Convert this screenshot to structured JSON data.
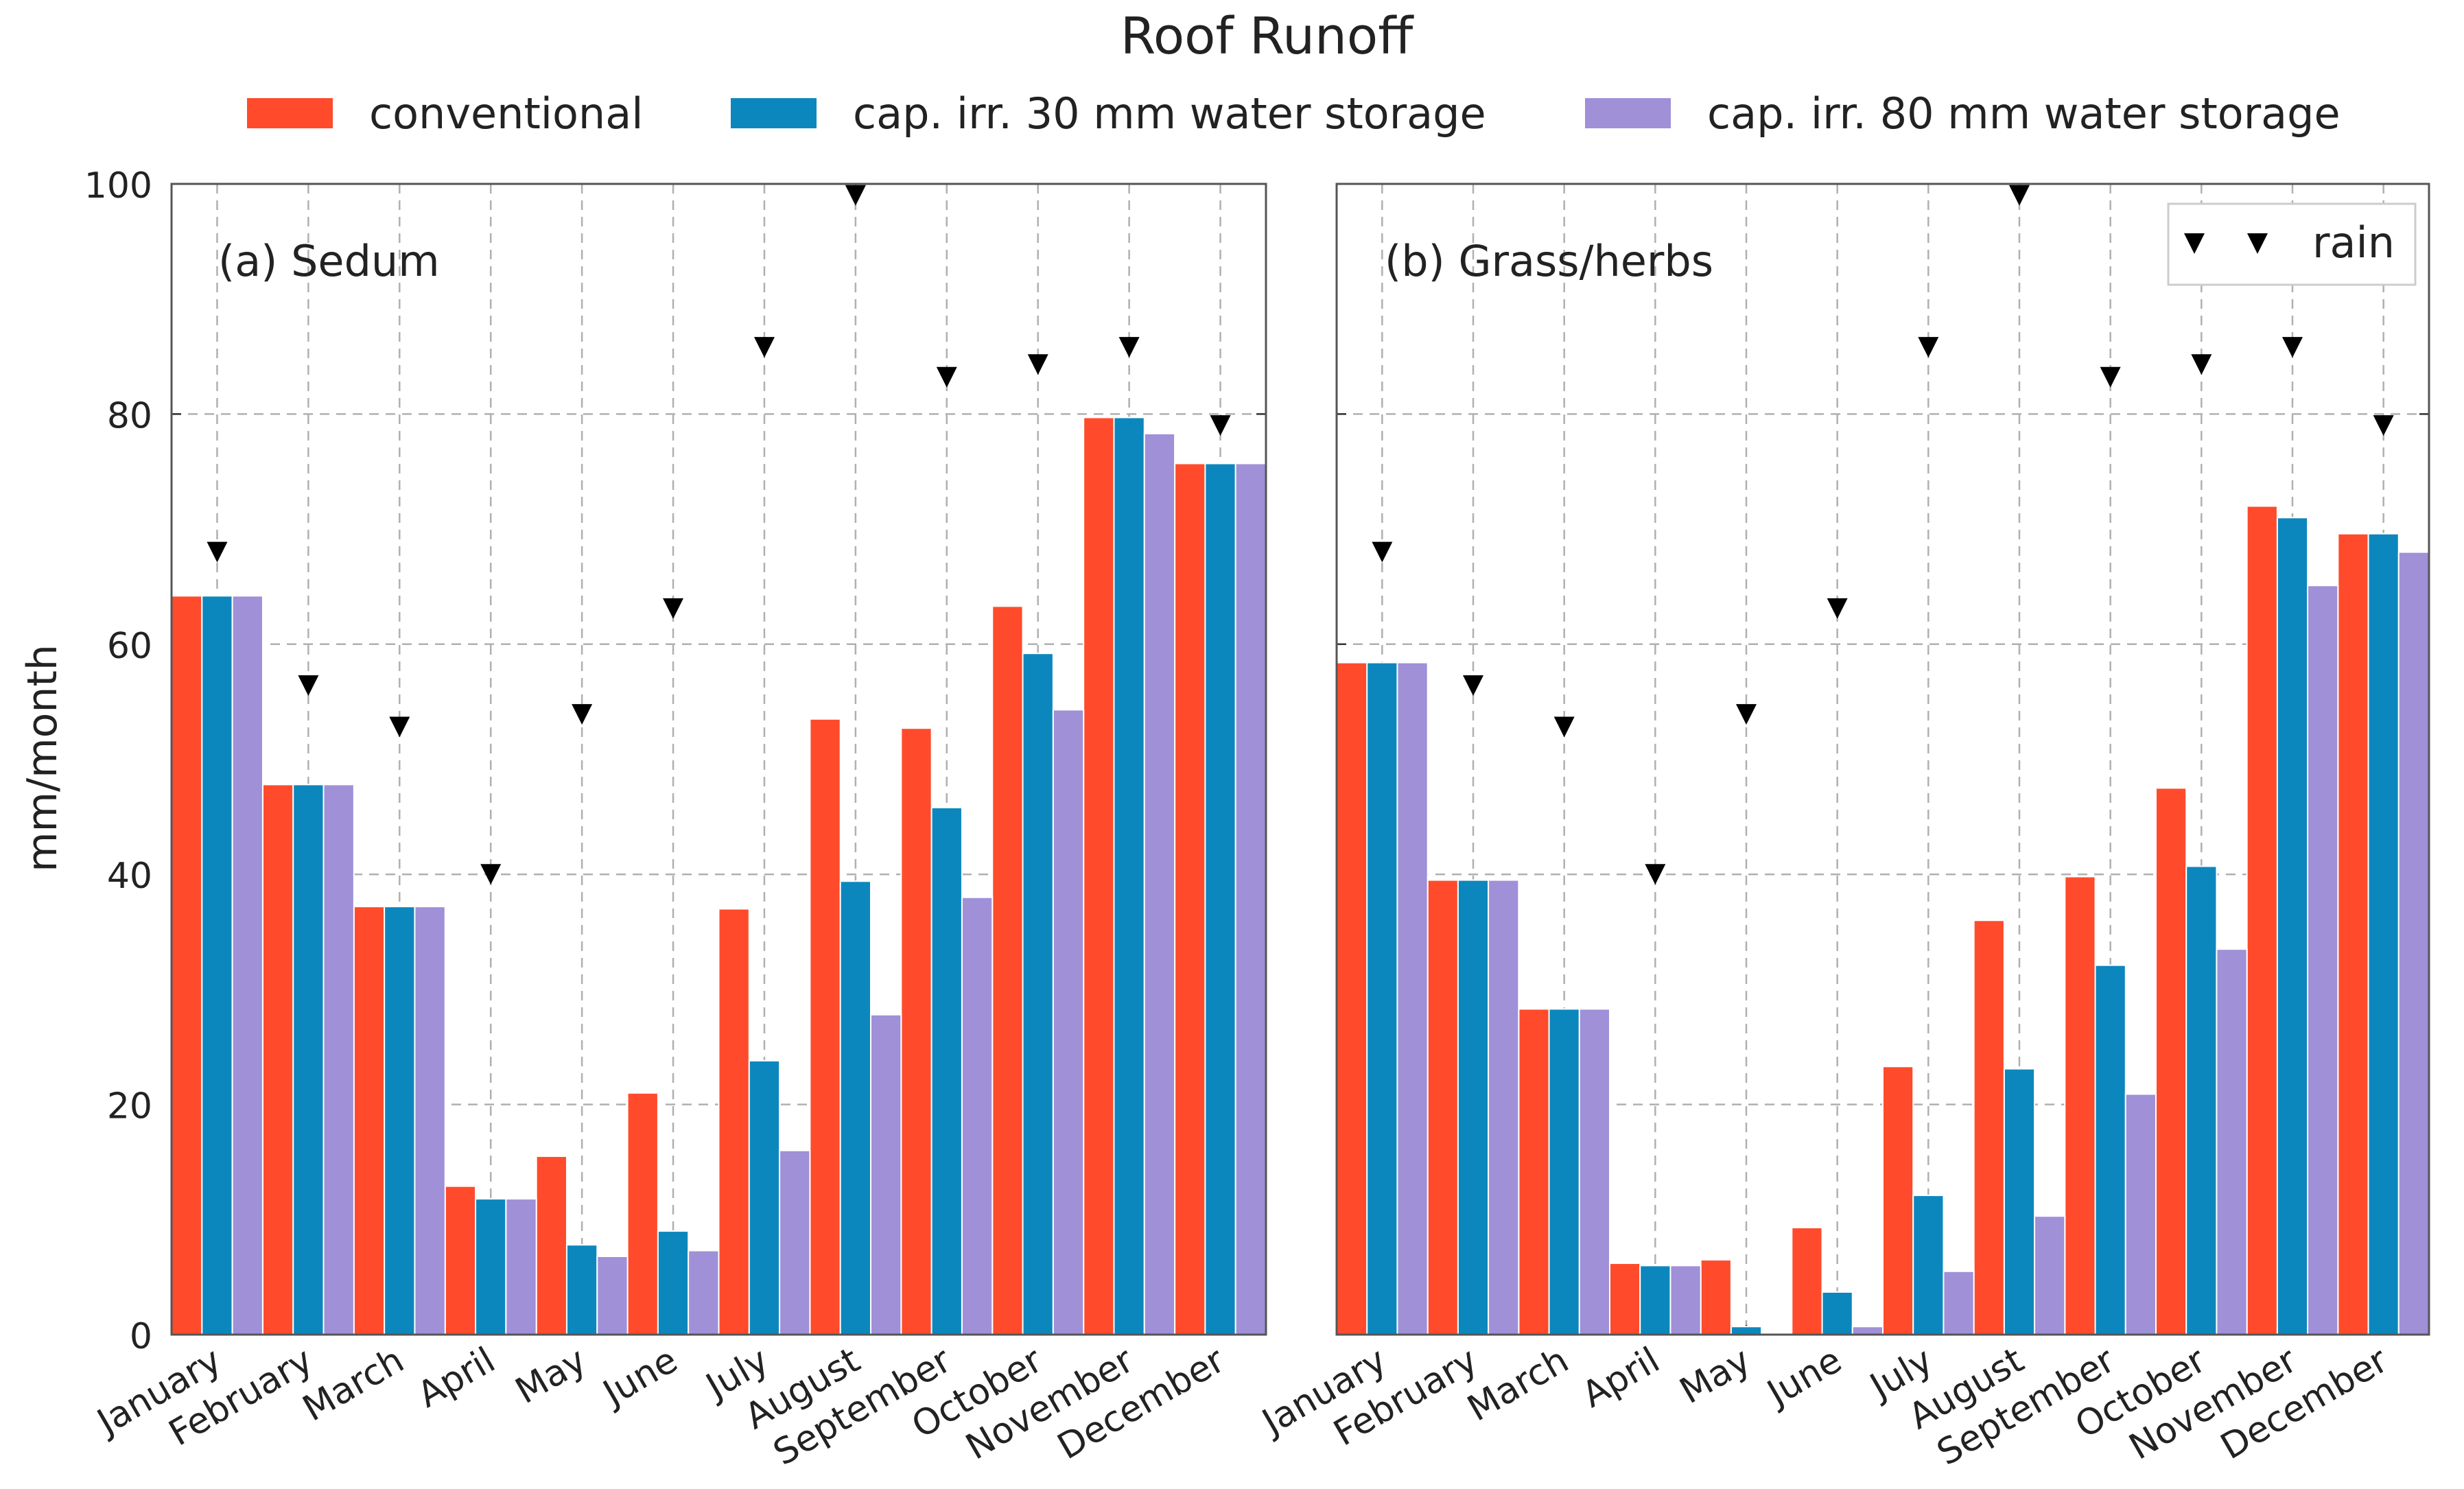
{
  "chart_data": {
    "type": "bar",
    "title": "Roof Runoff",
    "ylabel": "mm/month",
    "ylim": [
      0,
      100
    ],
    "yticks": [
      0,
      20,
      40,
      60,
      80,
      100
    ],
    "grid": true,
    "legend": {
      "placement": "top",
      "entries": [
        {
          "label": "conventional",
          "color": "#ff4b2b"
        },
        {
          "label": "cap. irr. 30 mm water storage",
          "color": "#0c87bd"
        },
        {
          "label": "cap. irr. 80 mm water storage",
          "color": "#9f90d8"
        }
      ]
    },
    "rain_legend": {
      "label": "rain",
      "marker": "downward-triangle",
      "placement": "top-right of panel (b)"
    },
    "categories": [
      "January",
      "February",
      "March",
      "April",
      "May",
      "June",
      "July",
      "August",
      "September",
      "October",
      "November",
      "December"
    ],
    "panels": [
      {
        "label": "(a) Sedum",
        "series": [
          {
            "name": "conventional",
            "values": [
              64.2,
              47.8,
              37.2,
              12.9,
              15.5,
              21.0,
              37.0,
              53.5,
              52.7,
              63.3,
              79.7,
              75.7
            ]
          },
          {
            "name": "cap. irr. 30 mm water storage",
            "values": [
              64.2,
              47.8,
              37.2,
              11.8,
              7.8,
              9.0,
              23.8,
              39.4,
              45.8,
              59.2,
              79.7,
              75.7
            ]
          },
          {
            "name": "cap. irr. 80 mm water storage",
            "values": [
              64.2,
              47.8,
              37.2,
              11.8,
              6.8,
              7.3,
              16.0,
              27.8,
              38.0,
              54.3,
              78.3,
              75.7
            ]
          }
        ],
        "rain": [
          68.0,
          56.4,
          52.8,
          40.0,
          53.9,
          63.1,
          85.8,
          99.0,
          83.2,
          84.3,
          85.8,
          79.0
        ]
      },
      {
        "label": "(b) Grass/herbs",
        "series": [
          {
            "name": "conventional",
            "values": [
              58.4,
              39.5,
              28.3,
              6.2,
              6.5,
              9.3,
              23.3,
              36.0,
              39.8,
              47.5,
              72.0,
              69.6
            ]
          },
          {
            "name": "cap. irr. 30 mm water storage",
            "values": [
              58.4,
              39.5,
              28.3,
              6.0,
              0.7,
              3.7,
              12.1,
              23.1,
              32.1,
              40.7,
              71.0,
              69.6
            ]
          },
          {
            "name": "cap. irr. 80 mm water storage",
            "values": [
              58.4,
              39.5,
              28.3,
              6.0,
              0.0,
              0.7,
              5.5,
              10.3,
              20.9,
              33.5,
              65.1,
              68.0
            ]
          }
        ],
        "rain": [
          68.0,
          56.4,
          52.8,
          40.0,
          53.9,
          63.1,
          85.8,
          99.0,
          83.2,
          84.3,
          85.8,
          79.0
        ]
      }
    ]
  }
}
